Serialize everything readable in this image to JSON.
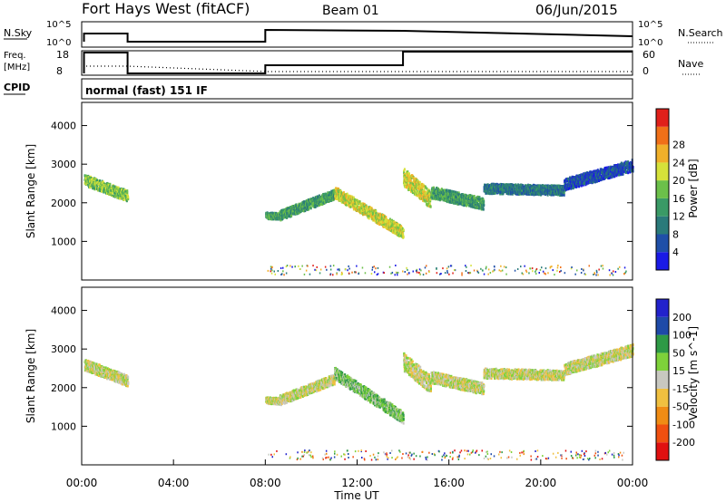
{
  "header": {
    "station": "Fort Hays West (fitACF)",
    "beam": "Beam 01",
    "date": "06/Jun/2015"
  },
  "strip_labels": {
    "nsky": "N.Sky",
    "nsky_ticks": [
      "10^5",
      "10^0"
    ],
    "nsearch": "N.Search",
    "nsearch_ticks": [
      "10^5",
      "10^0"
    ],
    "freq_line1": "Freq.",
    "freq_line2": "[MHz]",
    "freq_ticks": [
      "18",
      "8"
    ],
    "nave": "Nave",
    "nave_ticks": [
      "60",
      "0"
    ],
    "cpid": "CPID",
    "cpid_text": "normal (fast) 151 IF"
  },
  "time_axis": {
    "label": "Time UT",
    "ticks": [
      "00:00",
      "04:00",
      "08:00",
      "12:00",
      "16:00",
      "20:00",
      "00:00"
    ]
  },
  "colors": {
    "power": [
      "#1a1ae6",
      "#1f4fa8",
      "#2a7a7a",
      "#3a9a66",
      "#6cc04a",
      "#d6e23a",
      "#f0b02a",
      "#f07018",
      "#e0201a"
    ],
    "velocity": [
      "#e01010",
      "#f05010",
      "#f08c14",
      "#f0c040",
      "#c8c8c0",
      "#7ed23a",
      "#2e9a46",
      "#1e4aa8",
      "#2222cc"
    ],
    "ground_scatter": "#c8c8c0"
  },
  "chart_data": [
    {
      "type": "heatmap",
      "name": "power",
      "ylabel": "Slant Range [km]",
      "yticks": [
        1000,
        2000,
        3000,
        4000
      ],
      "ylim": [
        0,
        4600
      ],
      "xlim_hours": [
        0,
        24
      ],
      "colorbar_label": "Power [dB]",
      "colorbar_ticks": [
        "4",
        "8",
        "12",
        "16",
        "20",
        "24",
        "28"
      ],
      "scatter_segments": [
        {
          "t0": 0.1,
          "t1": 2.0,
          "r0": 2620,
          "r1": 2200,
          "w": 280,
          "level": 4
        },
        {
          "t0": 8.0,
          "t1": 8.6,
          "r0": 1700,
          "r1": 1680,
          "w": 160,
          "level": 3
        },
        {
          "t0": 8.6,
          "t1": 11.0,
          "r0": 1700,
          "r1": 2250,
          "w": 250,
          "level": 3
        },
        {
          "t0": 11.0,
          "t1": 14.0,
          "r0": 2300,
          "r1": 1250,
          "w": 300,
          "level": 5
        },
        {
          "t0": 14.0,
          "t1": 15.2,
          "r0": 2700,
          "r1": 2100,
          "w": 450,
          "level": 5
        },
        {
          "t0": 15.2,
          "t1": 17.5,
          "r0": 2300,
          "r1": 2000,
          "w": 300,
          "level": 3
        },
        {
          "t0": 17.5,
          "t1": 21.0,
          "r0": 2400,
          "r1": 2350,
          "w": 250,
          "level": 2
        },
        {
          "t0": 21.0,
          "t1": 24.0,
          "r0": 2500,
          "r1": 3000,
          "w": 300,
          "level": 1
        }
      ]
    },
    {
      "type": "heatmap",
      "name": "velocity",
      "ylabel": "Slant Range [km]",
      "yticks": [
        1000,
        2000,
        3000,
        4000
      ],
      "ylim": [
        0,
        4600
      ],
      "xlim_hours": [
        0,
        24
      ],
      "colorbar_label": "Velocity [m s^-1]",
      "colorbar_ticks": [
        "-200",
        "-100",
        "-50",
        "-15",
        "15",
        "50",
        "100",
        "200"
      ],
      "scatter_segments": [
        {
          "t0": 0.1,
          "t1": 2.0,
          "r0": 2620,
          "r1": 2200,
          "w": 280,
          "level": 4
        },
        {
          "t0": 8.0,
          "t1": 8.6,
          "r0": 1700,
          "r1": 1680,
          "w": 160,
          "level": 4
        },
        {
          "t0": 8.6,
          "t1": 11.0,
          "r0": 1700,
          "r1": 2250,
          "w": 250,
          "level": 4
        },
        {
          "t0": 11.0,
          "t1": 14.0,
          "r0": 2400,
          "r1": 1250,
          "w": 300,
          "level": 5
        },
        {
          "t0": 14.0,
          "t1": 15.2,
          "r0": 2700,
          "r1": 2100,
          "w": 450,
          "level": 4
        },
        {
          "t0": 15.2,
          "t1": 17.5,
          "r0": 2300,
          "r1": 2000,
          "w": 300,
          "level": 4
        },
        {
          "t0": 17.5,
          "t1": 21.0,
          "r0": 2400,
          "r1": 2350,
          "w": 250,
          "level": 4
        },
        {
          "t0": 21.0,
          "t1": 24.0,
          "r0": 2500,
          "r1": 3000,
          "w": 300,
          "level": 4
        }
      ]
    }
  ]
}
